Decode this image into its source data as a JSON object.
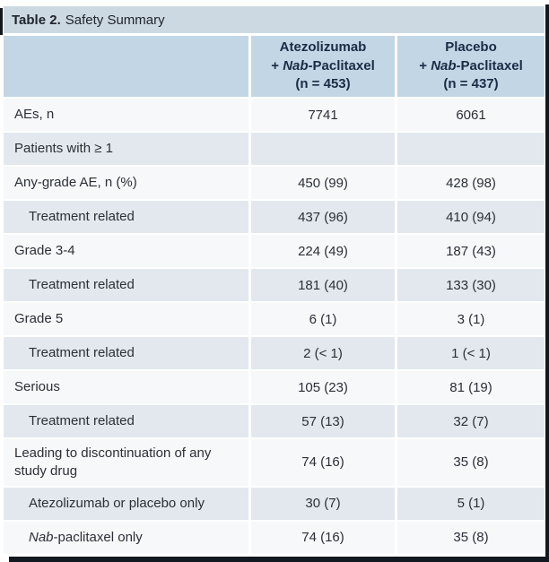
{
  "title": {
    "bold": "Table 2.",
    "rest": "Safety Summary"
  },
  "header": {
    "columns": [
      {
        "drug": "Atezolizumab",
        "combo_pre": "+ ",
        "combo_italic": "Nab",
        "combo_post": "-Paclitaxel",
        "n": "(n = 453)"
      },
      {
        "drug": "Placebo",
        "combo_pre": "+ ",
        "combo_italic": "Nab",
        "combo_post": "-Paclitaxel",
        "n": "(n = 437)"
      }
    ]
  },
  "rows": [
    {
      "label_parts": [
        {
          "text": "AEs, n"
        }
      ],
      "indent": 0,
      "section": false,
      "shade": "light",
      "values": [
        "7741",
        "6061"
      ]
    },
    {
      "label_parts": [
        {
          "text": "Patients with ≥ 1"
        }
      ],
      "indent": 0,
      "section": true,
      "shade": "dark",
      "values": [
        "",
        ""
      ]
    },
    {
      "label_parts": [
        {
          "text": "Any-grade AE, n (%)"
        }
      ],
      "indent": 0,
      "section": false,
      "shade": "light",
      "values": [
        "450 (99)",
        "428 (98)"
      ]
    },
    {
      "label_parts": [
        {
          "text": "Treatment related"
        }
      ],
      "indent": 1,
      "section": false,
      "shade": "dark",
      "values": [
        "437 (96)",
        "410 (94)"
      ]
    },
    {
      "label_parts": [
        {
          "text": "Grade 3-4"
        }
      ],
      "indent": 0,
      "section": false,
      "shade": "light",
      "values": [
        "224 (49)",
        "187 (43)"
      ]
    },
    {
      "label_parts": [
        {
          "text": "Treatment related"
        }
      ],
      "indent": 1,
      "section": false,
      "shade": "dark",
      "values": [
        "181 (40)",
        "133 (30)"
      ]
    },
    {
      "label_parts": [
        {
          "text": "Grade 5"
        }
      ],
      "indent": 0,
      "section": false,
      "shade": "light",
      "values": [
        "6 (1)",
        "3 (1)"
      ]
    },
    {
      "label_parts": [
        {
          "text": "Treatment related"
        }
      ],
      "indent": 1,
      "section": false,
      "shade": "dark",
      "values": [
        "2 (< 1)",
        "1 (< 1)"
      ]
    },
    {
      "label_parts": [
        {
          "text": "Serious"
        }
      ],
      "indent": 0,
      "section": false,
      "shade": "light",
      "values": [
        "105 (23)",
        "81 (19)"
      ]
    },
    {
      "label_parts": [
        {
          "text": "Treatment related"
        }
      ],
      "indent": 1,
      "section": false,
      "shade": "dark",
      "values": [
        "57 (13)",
        "32 (7)"
      ]
    },
    {
      "label_parts": [
        {
          "text": "Leading to discontinuation of any study drug"
        }
      ],
      "indent": 0,
      "section": false,
      "shade": "light",
      "values": [
        "74 (16)",
        "35 (8)"
      ]
    },
    {
      "label_parts": [
        {
          "text": "Atezolizumab or placebo only"
        }
      ],
      "indent": 1,
      "section": false,
      "shade": "dark",
      "values": [
        "30 (7)",
        "5 (1)"
      ]
    },
    {
      "label_parts": [
        {
          "text": "Nab",
          "italic": true
        },
        {
          "text": "-paclitaxel only"
        }
      ],
      "indent": 1,
      "section": false,
      "shade": "light",
      "values": [
        "74 (16)",
        "35 (8)"
      ]
    }
  ],
  "colors": {
    "title_bar_bg": "#cdd9e2",
    "header_bg": "#c2d6e5",
    "row_light": "#f6f8fa",
    "row_dark": "#e2e8ee",
    "divider_white": "#ffffff",
    "edge_dark": "#131720",
    "text": "#2b2f36",
    "header_text": "#1b2b45"
  }
}
